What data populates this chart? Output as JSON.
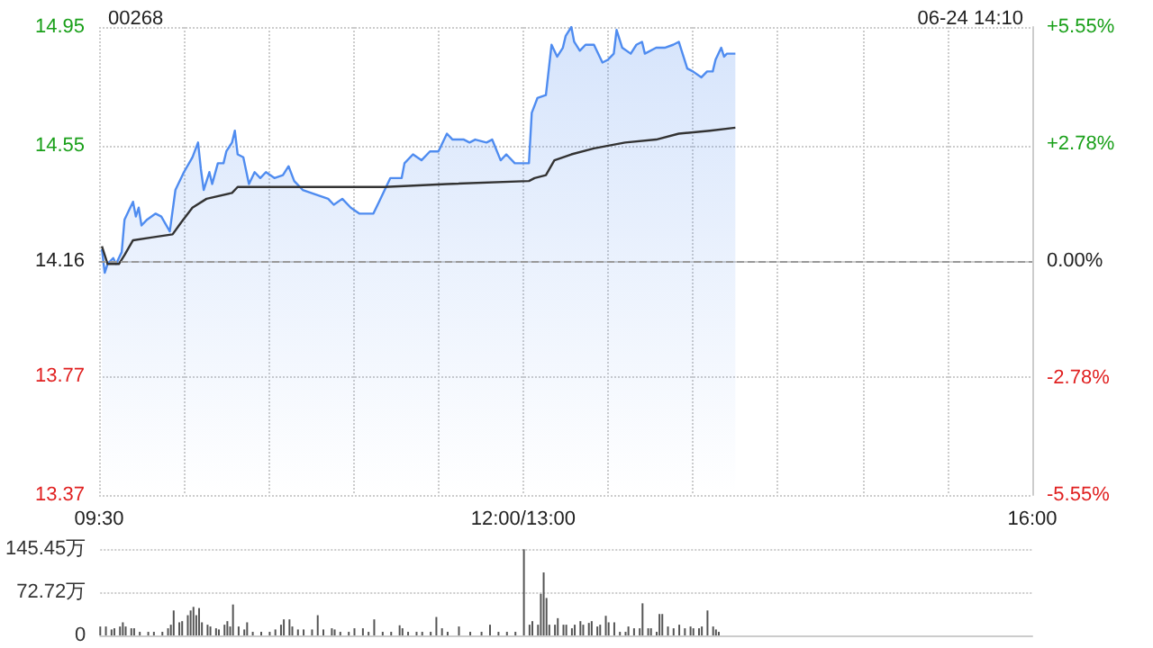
{
  "chart_data": {
    "type": "line",
    "title": "00268",
    "annotations": [
      "06-24 14:10"
    ],
    "marker": "none",
    "grid": true,
    "categories": [
      "09:30",
      null,
      null,
      null,
      null,
      null,
      null,
      null,
      null,
      null,
      null,
      null,
      null,
      null,
      null,
      null,
      null,
      null,
      null,
      null,
      null,
      null,
      null,
      null,
      null,
      null,
      null,
      null,
      null,
      null,
      null,
      null,
      null,
      null,
      null,
      null,
      null,
      null,
      null,
      null,
      null,
      null,
      null,
      null,
      null,
      null,
      null,
      null,
      null,
      null,
      null,
      null,
      null,
      null,
      null,
      null,
      null,
      null,
      null,
      null,
      null,
      null,
      null,
      null,
      null,
      null,
      null,
      null,
      null,
      null,
      null,
      null,
      null,
      null,
      null,
      null,
      null,
      null,
      null,
      null,
      null,
      null,
      null,
      null,
      null,
      null,
      null,
      null,
      null,
      null,
      null,
      null,
      null,
      null,
      null,
      null,
      null,
      null,
      null,
      null,
      null,
      null,
      null,
      null,
      null,
      null,
      null,
      null,
      null,
      null,
      null,
      null,
      null,
      null,
      null,
      null,
      null,
      null,
      null,
      null,
      null,
      null,
      null,
      null,
      null,
      null,
      null,
      null,
      null,
      null,
      null,
      null,
      null,
      null,
      null,
      null,
      null,
      null,
      null,
      null,
      null,
      null,
      null,
      null,
      null,
      null,
      null,
      null,
      null,
      null,
      "12:00/13:00",
      null,
      null,
      null,
      null,
      null,
      null,
      null,
      null,
      null,
      null,
      null,
      null,
      null,
      null,
      null,
      null,
      null,
      null,
      null,
      null,
      null,
      null,
      null,
      null,
      null,
      null,
      null,
      null,
      null,
      null,
      null,
      null,
      null,
      null,
      null,
      null,
      null,
      null,
      null,
      null,
      null,
      null,
      null,
      null,
      null,
      null,
      null,
      null,
      null,
      null,
      null,
      null,
      null,
      null,
      null,
      null,
      null,
      null,
      null,
      null,
      null,
      null,
      null,
      null,
      null,
      null,
      null,
      null,
      null,
      null,
      null,
      null,
      null,
      null,
      null,
      null,
      null,
      null,
      null,
      null,
      null,
      null,
      null,
      null,
      null,
      null,
      null,
      null,
      null,
      null,
      null,
      null,
      null,
      null,
      null,
      null,
      null,
      null,
      null,
      null,
      null,
      null,
      null,
      null,
      null,
      null,
      null,
      null,
      null,
      null,
      null,
      null,
      null,
      null,
      null,
      null,
      null,
      null,
      null,
      null,
      null,
      null,
      null,
      null,
      null,
      null,
      null,
      null,
      null,
      null,
      null,
      null,
      null,
      null,
      null,
      null,
      null,
      null,
      null,
      null,
      null,
      null,
      null,
      null,
      null,
      null,
      null,
      null,
      null,
      null,
      null,
      null,
      null,
      null,
      null,
      null,
      null,
      null,
      null,
      null,
      null,
      null,
      null,
      null,
      null,
      null,
      null,
      null,
      null,
      null,
      null,
      null,
      null,
      null,
      null,
      null,
      null,
      null,
      null,
      "16:00"
    ],
    "ylim": [
      13.37,
      14.95
    ],
    "yticks": [
      13.37,
      13.77,
      14.16,
      14.55,
      14.95
    ],
    "y2lim": [
      -5.55,
      5.55
    ],
    "y2ticks": [
      {
        "value": -5.55,
        "label": "-5.55%"
      },
      {
        "value": -2.78,
        "label": "-2.78%"
      },
      {
        "value": 0,
        "label": "0.00%"
      },
      {
        "value": 2.78,
        "label": "+2.78%"
      },
      {
        "value": 5.55,
        "label": "+5.55%"
      }
    ],
    "y3lim": [
      0,
      145.45
    ],
    "y3ticks": [
      0,
      {
        "value": 72.72,
        "label": "72.72万"
      },
      {
        "value": 145.45,
        "label": "145.45万"
      }
    ],
    "ref_lines": [
      {
        "axis": "y",
        "value": 14.16,
        "color": "#999999",
        "line_style": "dashed"
      }
    ],
    "series": [
      {
        "type": "area",
        "color": "#4f8cf0",
        "values": [
          null,
          14.2,
          14.12,
          14.15,
          null,
          14.17,
          14.15,
          null,
          14.19,
          14.3,
          null,
          14.34,
          14.36,
          14.31,
          14.34,
          14.28,
          null,
          14.3,
          null,
          null,
          14.32,
          null,
          14.31,
          null,
          null,
          14.26,
          null,
          14.4,
          null,
          null,
          14.46,
          null,
          null,
          14.51,
          null,
          14.56,
          14.47,
          14.4,
          null,
          14.46,
          14.42,
          null,
          14.49,
          null,
          14.49,
          14.53,
          null,
          14.56,
          14.6,
          14.52,
          null,
          14.51,
          null,
          14.42,
          null,
          14.46,
          null,
          14.44,
          null,
          14.46,
          null,
          null,
          14.44,
          null,
          null,
          14.45,
          null,
          14.48,
          null,
          14.43,
          null,
          null,
          14.4,
          null,
          null,
          14.39,
          null,
          null,
          14.38,
          null,
          null,
          14.37,
          null,
          14.35,
          null,
          null,
          14.37,
          null,
          null,
          14.34,
          null,
          null,
          14.32,
          null,
          null,
          14.32,
          null,
          14.32,
          null,
          14.36,
          null,
          14.4,
          null,
          14.44,
          null,
          null,
          null,
          14.44,
          14.49,
          null,
          null,
          14.52,
          null,
          null,
          14.5,
          null,
          null,
          14.53,
          null,
          null,
          14.53,
          null,
          null,
          14.59,
          null,
          14.57,
          null,
          null,
          null,
          14.57,
          null,
          14.56,
          null,
          14.57,
          null,
          null,
          null,
          14.56,
          null,
          14.57,
          null,
          null,
          14.5,
          null,
          14.52,
          null,
          null,
          14.49,
          null,
          null,
          null,
          null,
          14.49,
          14.66,
          null,
          14.71,
          null,
          null,
          14.72,
          null,
          14.89,
          null,
          14.85,
          null,
          14.88,
          14.92,
          null,
          14.95,
          14.9,
          null,
          14.87,
          null,
          14.89,
          null,
          null,
          14.89,
          null,
          null,
          14.83,
          null,
          14.84,
          null,
          14.86,
          14.94,
          null,
          14.88,
          null,
          null,
          14.86,
          null,
          14.89,
          null,
          14.9,
          14.86,
          null,
          null,
          null,
          14.88,
          null,
          null,
          14.88,
          null,
          null,
          14.89,
          null,
          14.9,
          14.87,
          null,
          14.81,
          null,
          14.8,
          null,
          null,
          14.78,
          null,
          14.8,
          null,
          14.8,
          14.84,
          null,
          14.88,
          14.85,
          14.86,
          null,
          null,
          14.86,
          null,
          null,
          null,
          null,
          null,
          null,
          null,
          null,
          null,
          null,
          null,
          null,
          null,
          null,
          null,
          null,
          null,
          null,
          null,
          null,
          null,
          null,
          null,
          null,
          null,
          null,
          null,
          null,
          null,
          null,
          null,
          null,
          null,
          null,
          null,
          null,
          null,
          null,
          null,
          null,
          null,
          null,
          null,
          null,
          null,
          null,
          null,
          null,
          null,
          null,
          null,
          null,
          null,
          null,
          null,
          null,
          null,
          null,
          null,
          null,
          null,
          null,
          null,
          null,
          null,
          null,
          null,
          null,
          null,
          null,
          null,
          null,
          null,
          null,
          null,
          null,
          null,
          null,
          null,
          null,
          null,
          null,
          null,
          null,
          null,
          null,
          null,
          null,
          null,
          null,
          null,
          null,
          null,
          null,
          null,
          null,
          null,
          null,
          null,
          null,
          null,
          null,
          null,
          null,
          null
        ]
      },
      {
        "color": "#333333",
        "values": [
          null,
          14.21,
          null,
          14.15,
          null,
          null,
          null,
          14.15,
          null,
          14.18,
          null,
          null,
          14.23,
          null,
          null,
          null,
          null,
          null,
          null,
          14.24,
          null,
          null,
          null,
          null,
          null,
          null,
          14.25,
          null,
          null,
          14.29,
          null,
          null,
          null,
          14.34,
          null,
          null,
          null,
          null,
          14.37,
          null,
          null,
          null,
          null,
          null,
          null,
          null,
          null,
          14.39,
          null,
          14.41,
          null,
          null,
          null,
          null,
          null,
          null,
          null,
          null,
          null,
          null,
          null,
          null,
          null,
          null,
          null,
          null,
          null,
          14.41,
          null,
          null,
          null,
          null,
          null,
          null,
          null,
          null,
          null,
          null,
          null,
          null,
          null,
          null,
          null,
          null,
          null,
          null,
          null,
          null,
          null,
          null,
          null,
          null,
          null,
          14.41,
          null,
          null,
          null,
          null,
          null,
          null,
          null,
          14.41,
          null,
          null,
          null,
          null,
          null,
          null,
          null,
          null,
          null,
          null,
          null,
          null,
          null,
          null,
          null,
          null,
          null,
          null,
          null,
          null,
          null,
          14.42,
          null,
          null,
          null,
          null,
          null,
          null,
          null,
          null,
          null,
          null,
          null,
          null,
          null,
          null,
          null,
          null,
          null,
          null,
          null,
          null,
          null,
          null,
          null,
          null,
          null,
          null,
          null,
          null,
          14.43,
          null,
          14.44,
          null,
          null,
          null,
          14.45,
          null,
          null,
          14.5,
          null,
          null,
          null,
          null,
          null,
          14.52,
          null,
          null,
          null,
          null,
          null,
          null,
          null,
          14.54,
          null,
          null,
          null,
          null,
          null,
          null,
          null,
          null,
          null,
          null,
          14.56,
          null,
          null,
          null,
          null,
          null,
          null,
          null,
          null,
          null,
          null,
          14.57,
          null,
          null,
          null,
          null,
          null,
          null,
          null,
          14.59,
          null,
          null,
          null,
          null,
          null,
          null,
          null,
          null,
          null,
          null,
          14.6,
          null,
          null,
          null,
          null,
          null,
          null,
          null,
          null,
          14.61,
          null,
          null,
          null,
          null,
          null,
          null,
          null,
          null,
          null,
          null,
          null,
          null,
          null,
          null,
          null,
          null,
          null,
          null,
          null,
          null,
          null,
          null,
          null,
          null,
          null,
          null,
          null,
          null,
          null,
          null,
          null,
          null,
          null,
          null,
          null,
          null,
          null,
          null,
          null,
          null,
          null,
          null,
          null,
          null,
          null,
          null,
          null,
          null,
          null,
          null,
          null,
          null,
          null,
          null,
          null,
          null,
          null,
          null,
          null,
          null,
          null,
          null,
          null,
          null,
          null,
          null,
          null,
          null,
          null,
          null,
          null,
          null,
          null,
          null,
          null,
          null,
          null,
          null,
          null,
          null,
          null,
          null,
          null,
          null,
          null,
          null,
          null,
          null,
          null,
          null,
          null,
          null,
          null,
          null,
          null,
          null,
          null,
          null,
          null,
          null,
          null,
          null,
          null,
          null,
          null
        ]
      },
      {
        "type": "bar",
        "axis": "y3",
        "color": "#555555",
        "values": [
          15,
          null,
          15,
          null,
          10,
          12,
          null,
          15,
          22,
          15,
          null,
          12,
          12,
          null,
          6,
          null,
          null,
          6,
          null,
          6,
          null,
          null,
          6,
          null,
          12,
          18,
          42,
          null,
          22,
          24,
          null,
          34,
          42,
          48,
          34,
          46,
          22,
          null,
          18,
          15,
          null,
          12,
          10,
          null,
          18,
          24,
          15,
          52,
          null,
          15,
          null,
          10,
          22,
          null,
          6,
          null,
          null,
          6,
          null,
          null,
          6,
          null,
          10,
          null,
          18,
          27,
          null,
          27,
          15,
          null,
          10,
          null,
          10,
          null,
          null,
          10,
          null,
          34,
          null,
          10,
          null,
          null,
          12,
          10,
          null,
          6,
          null,
          null,
          6,
          null,
          12,
          null,
          null,
          12,
          null,
          6,
          null,
          27,
          null,
          null,
          6,
          null,
          null,
          6,
          null,
          null,
          17,
          12,
          null,
          6,
          null,
          null,
          6,
          null,
          6,
          null,
          null,
          6,
          null,
          31,
          null,
          12,
          null,
          6,
          null,
          null,
          null,
          15,
          null,
          null,
          null,
          6,
          null,
          null,
          null,
          6,
          null,
          null,
          18,
          null,
          null,
          6,
          null,
          null,
          6,
          null,
          null,
          6,
          null,
          null,
          145,
          null,
          18,
          24,
          null,
          18,
          70,
          106,
          63,
          18,
          null,
          18,
          29,
          null,
          18,
          18,
          null,
          12,
          18,
          null,
          24,
          18,
          null,
          21,
          24,
          null,
          15,
          18,
          null,
          33,
          22,
          null,
          22,
          null,
          6,
          null,
          6,
          15,
          null,
          12,
          null,
          12,
          54,
          null,
          12,
          12,
          null,
          6,
          36,
          36,
          null,
          15,
          null,
          12,
          null,
          18,
          null,
          12,
          null,
          15,
          12,
          null,
          12,
          15,
          null,
          42,
          null,
          15,
          10,
          6,
          null,
          null,
          null,
          null,
          null,
          null,
          null,
          null,
          null,
          null,
          null,
          null,
          null,
          null,
          null,
          null,
          null,
          null,
          null,
          null,
          null,
          null,
          null,
          null,
          null,
          null,
          null,
          null,
          null,
          null,
          null,
          null,
          null,
          null,
          null,
          null,
          null,
          null,
          null,
          null,
          null,
          null,
          null,
          null,
          null,
          null,
          null,
          null,
          null,
          null,
          null,
          null,
          null,
          null,
          null,
          null,
          null,
          null,
          null,
          null,
          null,
          null,
          null,
          null,
          null,
          null,
          null,
          null,
          null,
          null,
          null,
          null,
          null,
          null,
          null,
          null,
          null,
          null,
          null,
          null,
          null,
          null,
          null,
          null,
          null,
          null,
          null,
          null,
          null,
          null,
          null,
          null,
          null,
          null,
          null,
          null,
          null,
          null,
          null,
          null,
          null,
          null,
          null,
          null,
          null,
          null,
          null,
          null,
          null,
          null,
          null
        ]
      }
    ]
  }
}
